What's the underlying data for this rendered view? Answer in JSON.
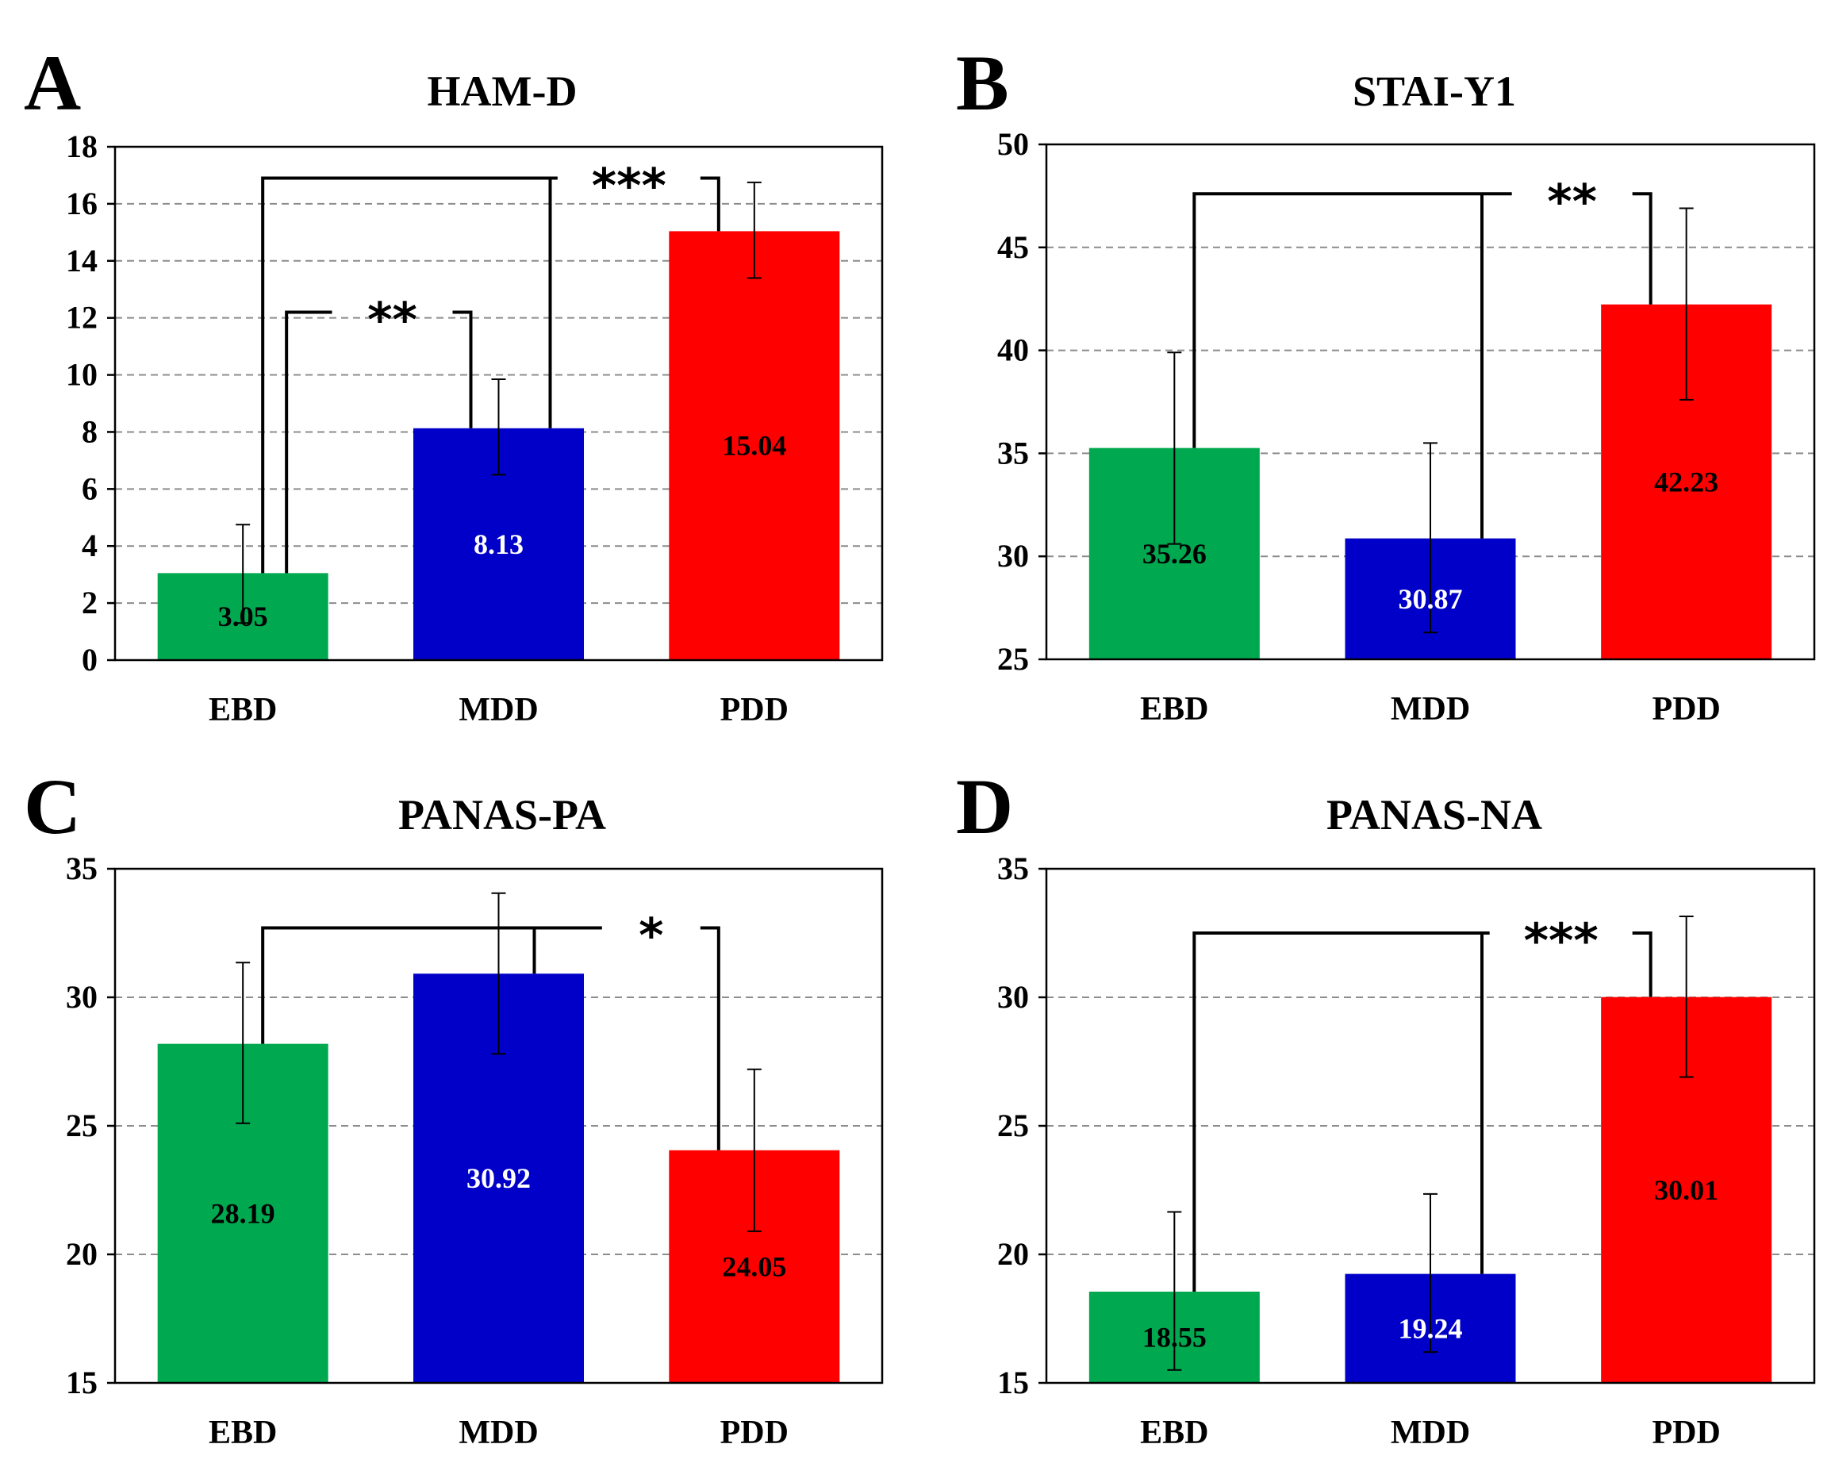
{
  "chart_data": [
    {
      "type": "bar",
      "panel": "A",
      "title": "HAM-D",
      "categories": [
        "EBD",
        "MDD",
        "PDD"
      ],
      "values": [
        3.05,
        8.13,
        15.04
      ],
      "value_labels": [
        "3.05",
        "8.13",
        "15.04"
      ],
      "error_low": [
        1.3,
        6.5,
        13.4
      ],
      "error_high": [
        4.75,
        9.85,
        16.75
      ],
      "colors": [
        "#00a84f",
        "#0000c8",
        "#ff0000"
      ],
      "label_colors": [
        "#000000",
        "#ffffff",
        "#000000"
      ],
      "ylim": [
        0,
        18
      ],
      "yticks": [
        "0",
        "2",
        "4",
        "6",
        "8",
        "10",
        "12",
        "14",
        "16",
        "18"
      ],
      "ytick_values": [
        0,
        2,
        4,
        6,
        8,
        10,
        12,
        14,
        16,
        18
      ],
      "gridlines": [
        2,
        4,
        6,
        8,
        10,
        12,
        14,
        16
      ],
      "xlabel": "",
      "ylabel": "",
      "significance": [
        {
          "from": 0,
          "to": 1,
          "level": 12.2,
          "label": "**",
          "from_base": 3.05,
          "to_base": 8.13
        },
        {
          "from": 0,
          "to": 2,
          "level": 16.9,
          "label": "***",
          "from_base": 3.05,
          "to_base": 15.04
        }
      ]
    },
    {
      "type": "bar",
      "panel": "B",
      "title": "STAI-Y1",
      "categories": [
        "EBD",
        "MDD",
        "PDD"
      ],
      "values": [
        35.26,
        30.87,
        42.23
      ],
      "value_labels": [
        "35.26",
        "30.87",
        "42.23"
      ],
      "error_low": [
        30.6,
        26.3,
        37.6
      ],
      "error_high": [
        39.9,
        35.5,
        46.9
      ],
      "colors": [
        "#00a84f",
        "#0000c8",
        "#ff0000"
      ],
      "label_colors": [
        "#000000",
        "#ffffff",
        "#000000"
      ],
      "ylim": [
        25,
        50
      ],
      "yticks": [
        "25",
        "30",
        "35",
        "40",
        "45",
        "50"
      ],
      "ytick_values": [
        25,
        30,
        35,
        40,
        45,
        50
      ],
      "gridlines": [
        30,
        35,
        40,
        45
      ],
      "xlabel": "",
      "ylabel": "",
      "significance": [
        {
          "from": 0,
          "to": 2,
          "level": 47.6,
          "label": "**",
          "from_base": 35.26,
          "to_base": 42.23
        }
      ]
    },
    {
      "type": "bar",
      "panel": "C",
      "title": "PANAS-PA",
      "categories": [
        "EBD",
        "MDD",
        "PDD"
      ],
      "values": [
        28.19,
        30.92,
        24.05
      ],
      "value_labels": [
        "28.19",
        "30.92",
        "24.05"
      ],
      "error_low": [
        25.1,
        27.8,
        20.9
      ],
      "error_high": [
        31.35,
        34.05,
        27.2
      ],
      "colors": [
        "#00a84f",
        "#0000c8",
        "#ff0000"
      ],
      "label_colors": [
        "#000000",
        "#ffffff",
        "#000000"
      ],
      "ylim": [
        15,
        35
      ],
      "yticks": [
        "15",
        "20",
        "25",
        "30",
        "35"
      ],
      "ytick_values": [
        15,
        20,
        25,
        30,
        35
      ],
      "gridlines": [
        20,
        25,
        30
      ],
      "xlabel": "",
      "ylabel": "",
      "significance": [
        {
          "from": 0,
          "to": 2,
          "level": 32.7,
          "label": "*",
          "from_base": 28.19,
          "to_base": 24.05
        }
      ]
    },
    {
      "type": "bar",
      "panel": "D",
      "title": "PANAS-NA",
      "categories": [
        "EBD",
        "MDD",
        "PDD"
      ],
      "values": [
        18.55,
        19.24,
        30.01
      ],
      "value_labels": [
        "18.55",
        "19.24",
        "30.01"
      ],
      "error_low": [
        15.5,
        16.2,
        26.9
      ],
      "error_high": [
        21.65,
        22.35,
        33.15
      ],
      "colors": [
        "#00a84f",
        "#0000c8",
        "#ff0000"
      ],
      "label_colors": [
        "#000000",
        "#ffffff",
        "#000000"
      ],
      "ylim": [
        15,
        35
      ],
      "yticks": [
        "15",
        "20",
        "25",
        "30",
        "35"
      ],
      "ytick_values": [
        15,
        20,
        25,
        30,
        35
      ],
      "gridlines": [
        20,
        25,
        30
      ],
      "xlabel": "",
      "ylabel": "",
      "significance": [
        {
          "from": 0,
          "to": 2,
          "level": 32.5,
          "label": "***",
          "from_base": 18.55,
          "to_base": 30.01
        }
      ]
    }
  ]
}
